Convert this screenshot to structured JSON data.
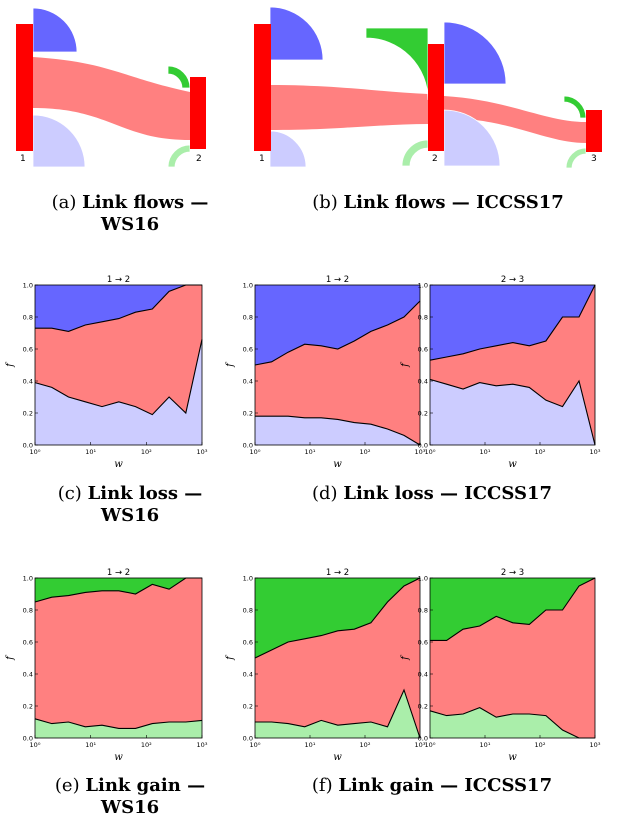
{
  "colors": {
    "upper_band": "#6666ff",
    "middle_band": "#ff8080",
    "lower_band": "#ccccff",
    "gain_top": "#33cc33",
    "gain_bottom": "#aaeeaa",
    "link": "#ff0000",
    "flow": "#ff8080"
  },
  "flow_diagrams": [
    {
      "node_labels": [
        "1",
        "2"
      ]
    },
    {
      "node_labels": [
        "1",
        "2",
        "3"
      ]
    }
  ],
  "captions": [
    {
      "letter": "(a)",
      "line1": "Link flows —",
      "line2": "WS16"
    },
    {
      "letter": "(b)",
      "line1": "Link flows — ICCSS17",
      "line2": ""
    },
    {
      "letter": "(c)",
      "line1": "Link loss —",
      "line2": "WS16"
    },
    {
      "letter": "(d)",
      "line1": "Link loss — ICCSS17",
      "line2": ""
    },
    {
      "letter": "(e)",
      "line1": "Link gain —",
      "line2": "WS16"
    },
    {
      "letter": "(f)",
      "line1": "Link gain — ICCSS17",
      "line2": ""
    }
  ],
  "chart_data": [
    {
      "id": "c",
      "type": "area",
      "title": "1 → 2",
      "xlabel": "w",
      "ylabel": "f",
      "xscale": "log",
      "xlim": [
        1,
        1000
      ],
      "ylim": [
        0,
        1
      ],
      "xticks": [
        "10⁰",
        "10¹",
        "10²",
        "10³"
      ],
      "yticks": [
        "0.0",
        "0.2",
        "0.4",
        "0.6",
        "0.8",
        "1.0"
      ],
      "x": [
        1,
        2,
        4,
        8,
        16,
        32,
        64,
        128,
        256,
        512,
        1000
      ],
      "boundaries": [
        [
          0.39,
          0.36,
          0.3,
          0.27,
          0.24,
          0.27,
          0.24,
          0.19,
          0.3,
          0.2,
          0.66
        ],
        [
          0.73,
          0.73,
          0.71,
          0.75,
          0.77,
          0.79,
          0.83,
          0.85,
          0.96,
          1.0,
          1.0
        ]
      ],
      "bands": [
        "lower_band",
        "middle_band",
        "upper_band"
      ]
    },
    {
      "id": "d1",
      "type": "area",
      "title": "1 → 2",
      "xlabel": "w",
      "ylabel": "f",
      "xscale": "log",
      "xlim": [
        1,
        1000
      ],
      "ylim": [
        0,
        1
      ],
      "xticks": [
        "10⁰",
        "10¹",
        "10²",
        "10³"
      ],
      "yticks": [
        "0.0",
        "0.2",
        "0.4",
        "0.6",
        "0.8",
        "1.0"
      ],
      "x": [
        1,
        2,
        4,
        8,
        16,
        32,
        64,
        128,
        256,
        512,
        1000
      ],
      "boundaries": [
        [
          0.18,
          0.18,
          0.18,
          0.17,
          0.17,
          0.16,
          0.14,
          0.13,
          0.1,
          0.06,
          0.0
        ],
        [
          0.5,
          0.52,
          0.58,
          0.63,
          0.62,
          0.6,
          0.65,
          0.71,
          0.75,
          0.8,
          0.9
        ]
      ],
      "bands": [
        "lower_band",
        "middle_band",
        "upper_band"
      ]
    },
    {
      "id": "d2",
      "type": "area",
      "title": "2 → 3",
      "xlabel": "w",
      "ylabel": "f",
      "xscale": "log",
      "xlim": [
        1,
        1000
      ],
      "ylim": [
        0,
        1
      ],
      "xticks": [
        "10⁰",
        "10¹",
        "10²",
        "10³"
      ],
      "yticks": [
        "0.0",
        "0.2",
        "0.4",
        "0.6",
        "0.8",
        "1.0"
      ],
      "x": [
        1,
        2,
        4,
        8,
        16,
        32,
        64,
        128,
        256,
        512,
        1000
      ],
      "boundaries": [
        [
          0.41,
          0.38,
          0.35,
          0.39,
          0.37,
          0.38,
          0.36,
          0.28,
          0.24,
          0.4,
          0.0
        ],
        [
          0.53,
          0.55,
          0.57,
          0.6,
          0.62,
          0.64,
          0.62,
          0.65,
          0.8,
          0.8,
          1.0
        ]
      ],
      "bands": [
        "lower_band",
        "middle_band",
        "upper_band"
      ]
    },
    {
      "id": "e",
      "type": "area",
      "title": "1 → 2",
      "xlabel": "w",
      "ylabel": "f",
      "xscale": "log",
      "xlim": [
        1,
        1000
      ],
      "ylim": [
        0,
        1
      ],
      "xticks": [
        "10⁰",
        "10¹",
        "10²",
        "10³"
      ],
      "yticks": [
        "0.0",
        "0.2",
        "0.4",
        "0.6",
        "0.8",
        "1.0"
      ],
      "x": [
        1,
        2,
        4,
        8,
        16,
        32,
        64,
        128,
        256,
        512,
        1000
      ],
      "boundaries": [
        [
          0.12,
          0.09,
          0.1,
          0.07,
          0.08,
          0.06,
          0.06,
          0.09,
          0.1,
          0.1,
          0.11
        ],
        [
          0.85,
          0.88,
          0.89,
          0.91,
          0.92,
          0.92,
          0.9,
          0.96,
          0.93,
          1.0,
          1.0
        ]
      ],
      "bands": [
        "gain_bottom",
        "middle_band",
        "gain_top"
      ]
    },
    {
      "id": "f1",
      "type": "area",
      "title": "1 → 2",
      "xlabel": "w",
      "ylabel": "f",
      "xscale": "log",
      "xlim": [
        1,
        1000
      ],
      "ylim": [
        0,
        1
      ],
      "xticks": [
        "10⁰",
        "10¹",
        "10²",
        "10³"
      ],
      "yticks": [
        "0.0",
        "0.2",
        "0.4",
        "0.6",
        "0.8",
        "1.0"
      ],
      "x": [
        1,
        2,
        4,
        8,
        16,
        32,
        64,
        128,
        256,
        512,
        1000
      ],
      "boundaries": [
        [
          0.1,
          0.1,
          0.09,
          0.07,
          0.11,
          0.08,
          0.09,
          0.1,
          0.07,
          0.3,
          0.0
        ],
        [
          0.5,
          0.55,
          0.6,
          0.62,
          0.64,
          0.67,
          0.68,
          0.72,
          0.85,
          0.95,
          1.0
        ]
      ],
      "bands": [
        "gain_bottom",
        "middle_band",
        "gain_top"
      ]
    },
    {
      "id": "f2",
      "type": "area",
      "title": "2 → 3",
      "xlabel": "w",
      "ylabel": "f",
      "xscale": "log",
      "xlim": [
        1,
        1000
      ],
      "ylim": [
        0,
        1
      ],
      "xticks": [
        "10⁰",
        "10¹",
        "10²",
        "10³"
      ],
      "yticks": [
        "0.0",
        "0.2",
        "0.4",
        "0.6",
        "0.8",
        "1.0"
      ],
      "x": [
        1,
        2,
        4,
        8,
        16,
        32,
        64,
        128,
        256,
        512,
        1000
      ],
      "boundaries": [
        [
          0.17,
          0.14,
          0.15,
          0.19,
          0.13,
          0.15,
          0.15,
          0.14,
          0.05,
          0.0,
          0.0
        ],
        [
          0.61,
          0.61,
          0.68,
          0.7,
          0.76,
          0.72,
          0.71,
          0.8,
          0.8,
          0.95,
          1.0
        ]
      ],
      "bands": [
        "gain_bottom",
        "middle_band",
        "gain_top"
      ]
    }
  ]
}
